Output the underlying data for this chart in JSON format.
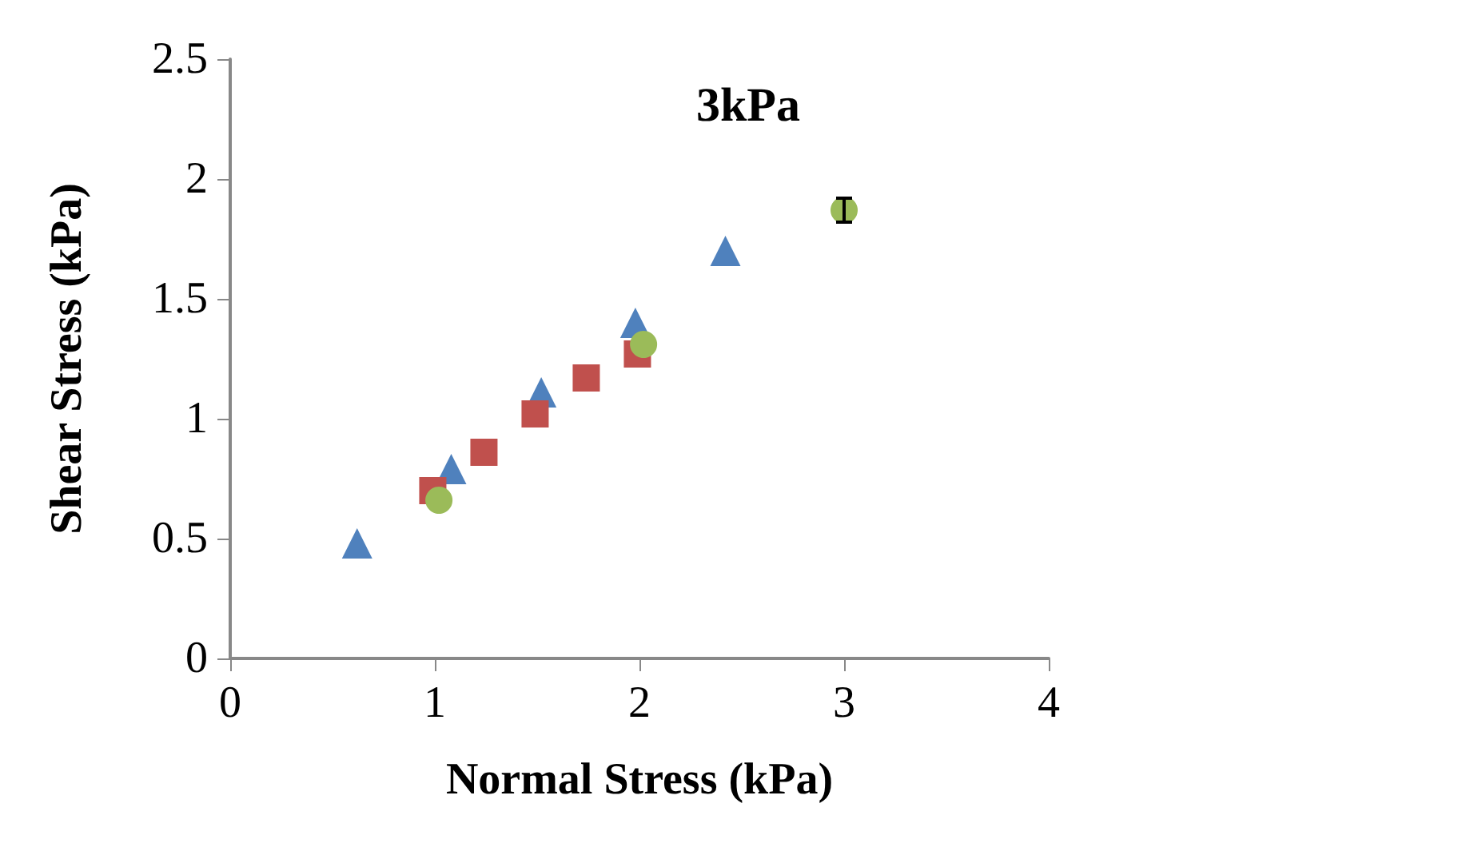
{
  "chart_data": {
    "type": "scatter",
    "title": "3kPa",
    "xlabel": "Normal Stress (kPa)",
    "ylabel": "Shear Stress (kPa)",
    "xlim": [
      0,
      4
    ],
    "xticks": [
      0,
      1,
      2,
      3,
      4
    ],
    "ylim": [
      0,
      2.5
    ],
    "yticks": [
      0,
      0.5,
      1,
      1.5,
      2,
      2.5
    ],
    "grid": false,
    "series": [
      {
        "color": "#4f81bd",
        "marker": "triangle",
        "x": [
          0.62,
          1.08,
          1.52,
          1.98,
          2.42
        ],
        "values": [
          0.48,
          0.79,
          1.11,
          1.4,
          1.7
        ]
      },
      {
        "color": "#c0504d",
        "marker": "square",
        "x": [
          0.99,
          1.24,
          1.49,
          1.74,
          1.99
        ],
        "values": [
          0.7,
          0.86,
          1.02,
          1.17,
          1.27
        ]
      },
      {
        "color": "#9bbb59",
        "marker": "circle",
        "x": [
          1.02,
          2.02,
          3.0
        ],
        "values": [
          0.66,
          1.31,
          1.87
        ],
        "errors": [
          null,
          null,
          0.05
        ]
      }
    ]
  }
}
